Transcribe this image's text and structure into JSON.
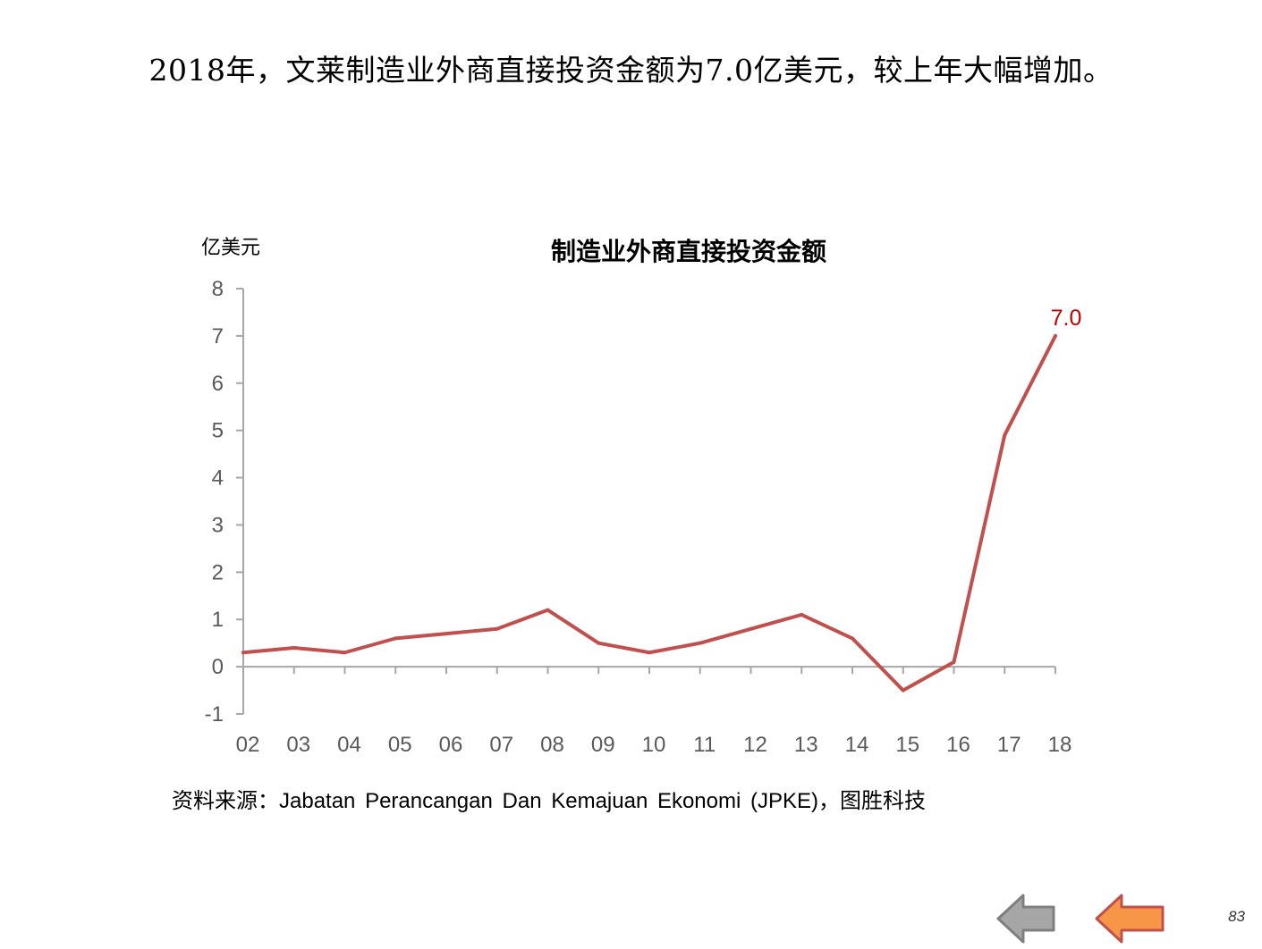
{
  "slide": {
    "headline": "2018年，文莱制造业外商直接投资金额为7.0亿美元，较上年大幅增加。",
    "source": "资料来源：Jabatan Perancangan Dan Kemajuan Ekonomi (JPKE)，图胜科技",
    "page_number": "83"
  },
  "nav": {
    "back_icon": "left-arrow-gray-icon",
    "home_icon": "left-arrow-orange-icon",
    "back_color": "#a6a6a6",
    "home_color": "#f79646"
  },
  "chart_data": {
    "type": "line",
    "title": "制造业外商直接投资金额",
    "ylabel": "亿美元",
    "xlabel": "",
    "categories": [
      "02",
      "03",
      "04",
      "05",
      "06",
      "07",
      "08",
      "09",
      "10",
      "11",
      "12",
      "13",
      "14",
      "15",
      "16",
      "17",
      "18"
    ],
    "series": [
      {
        "values": [
          0.3,
          0.4,
          0.3,
          0.6,
          0.7,
          0.8,
          1.2,
          0.5,
          0.3,
          0.5,
          0.8,
          1.1,
          0.6,
          -0.5,
          0.1,
          4.9,
          7.0
        ],
        "color": "#c0504d"
      }
    ],
    "ylim": [
      -1,
      8
    ],
    "yticks": [
      "8",
      "7",
      "6",
      "5",
      "4",
      "3",
      "2",
      "1",
      "0",
      "-1"
    ],
    "data_labels": [
      {
        "category": "18",
        "text": "7.0",
        "color": "#c00000"
      }
    ],
    "grid": false,
    "legend": "none"
  }
}
